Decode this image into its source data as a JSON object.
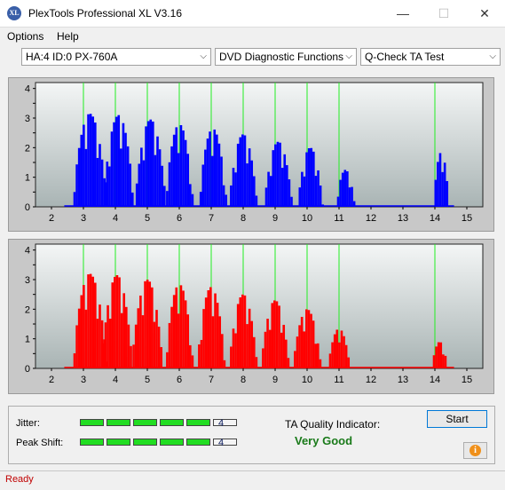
{
  "window": {
    "title": "PlexTools Professional XL V3.16",
    "icon_label": "XL",
    "controls": {
      "minimize": "—",
      "maximize": "☐",
      "close": "✕"
    }
  },
  "menu": [
    {
      "label": "Options"
    },
    {
      "label": "Help"
    }
  ],
  "toolbar": {
    "drive": "HA:4 ID:0  PX-760A",
    "function": "DVD Diagnostic Functions",
    "test": "Q-Check TA Test"
  },
  "charts": [
    {
      "id": "top",
      "bar_color": "#0000ff",
      "y_ticks": [
        "4",
        "3.5",
        "3",
        "2.5",
        "2",
        "1.5",
        "1",
        "0.5",
        "0"
      ],
      "x_ticks": [
        "2",
        "3",
        "4",
        "5",
        "6",
        "7",
        "8",
        "9",
        "10",
        "11",
        "12",
        "13",
        "14",
        "15"
      ],
      "ylim": [
        0,
        4.2
      ],
      "xlim": [
        1.5,
        15.5
      ],
      "green_lines": [
        3,
        4,
        5,
        6,
        7,
        8,
        9,
        10,
        11,
        14
      ],
      "peaks": [
        {
          "center": 3.2,
          "height": 3.15,
          "half_width": 0.55
        },
        {
          "center": 4.1,
          "height": 3.1,
          "half_width": 0.5
        },
        {
          "center": 5.1,
          "height": 2.95,
          "half_width": 0.5
        },
        {
          "center": 6.0,
          "height": 2.8,
          "half_width": 0.45
        },
        {
          "center": 7.05,
          "height": 2.65,
          "half_width": 0.45
        },
        {
          "center": 8.0,
          "height": 2.45,
          "half_width": 0.45
        },
        {
          "center": 9.1,
          "height": 2.2,
          "half_width": 0.45
        },
        {
          "center": 10.1,
          "height": 2.0,
          "half_width": 0.4
        },
        {
          "center": 11.2,
          "height": 1.25,
          "half_width": 0.3
        },
        {
          "center": 14.2,
          "height": 1.85,
          "half_width": 0.25
        }
      ]
    },
    {
      "id": "bottom",
      "bar_color": "#ff0000",
      "y_ticks": [
        "4",
        "3.5",
        "3",
        "2.5",
        "2",
        "1.5",
        "1",
        "0.5",
        "0"
      ],
      "x_ticks": [
        "2",
        "3",
        "4",
        "5",
        "6",
        "7",
        "8",
        "9",
        "10",
        "11",
        "12",
        "13",
        "14",
        "15"
      ],
      "ylim": [
        0,
        4.2
      ],
      "xlim": [
        1.5,
        15.5
      ],
      "green_lines": [
        3,
        4,
        5,
        6,
        7,
        8,
        9,
        10,
        11,
        14
      ],
      "peaks": [
        {
          "center": 3.2,
          "height": 3.2,
          "half_width": 0.55
        },
        {
          "center": 4.05,
          "height": 3.15,
          "half_width": 0.5
        },
        {
          "center": 5.0,
          "height": 3.0,
          "half_width": 0.5
        },
        {
          "center": 6.0,
          "height": 2.85,
          "half_width": 0.45
        },
        {
          "center": 7.0,
          "height": 2.75,
          "half_width": 0.45
        },
        {
          "center": 8.0,
          "height": 2.5,
          "half_width": 0.45
        },
        {
          "center": 9.0,
          "height": 2.3,
          "half_width": 0.45
        },
        {
          "center": 10.0,
          "height": 2.0,
          "half_width": 0.45
        },
        {
          "center": 11.0,
          "height": 1.35,
          "half_width": 0.35
        },
        {
          "center": 14.15,
          "height": 0.9,
          "half_width": 0.25
        }
      ]
    }
  ],
  "metrics": {
    "jitter": {
      "label": "Jitter:",
      "value": "4",
      "filled": 5,
      "total": 5
    },
    "peak_shift": {
      "label": "Peak Shift:",
      "value": "4",
      "filled": 5,
      "total": 5
    }
  },
  "ta_quality": {
    "label": "TA Quality Indicator:",
    "value": "Very Good"
  },
  "buttons": {
    "start": "Start",
    "info": "i"
  },
  "status": {
    "text": "Ready"
  }
}
